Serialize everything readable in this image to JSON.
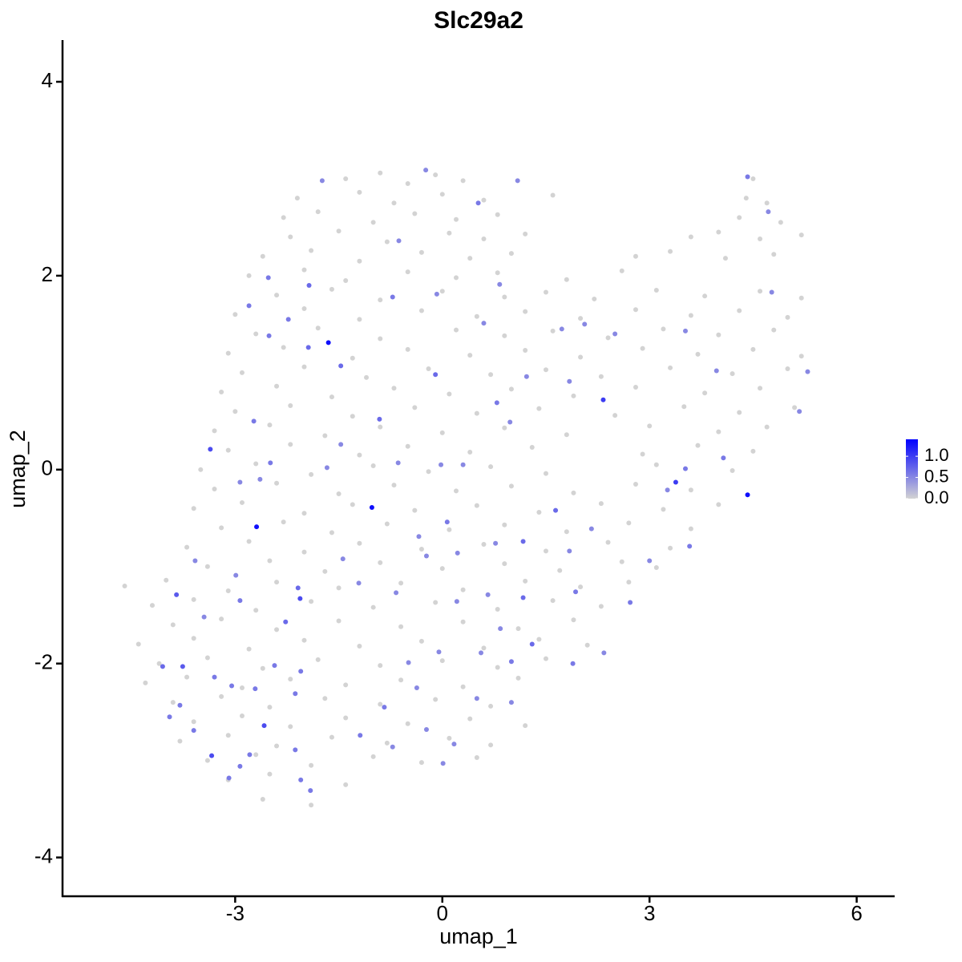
{
  "chart_data": {
    "type": "scatter",
    "title": "Slc29a2",
    "x_label": "umap_1",
    "y_label": "umap_2",
    "xlim": [
      -5.5,
      6.55
    ],
    "ylim": [
      -4.4,
      4.43
    ],
    "xticks": [
      -3,
      0,
      3,
      6
    ],
    "yticks": [
      -4,
      -2,
      0,
      2,
      4
    ],
    "colorbar": {
      "low_color": "#d3d3d3",
      "high_color": "#0000ff",
      "lim": [
        0,
        1.4
      ],
      "ticks": [
        {
          "value": 0,
          "label": "0.0"
        },
        {
          "value": 0.5,
          "label": "0.5"
        },
        {
          "value": 1,
          "label": "1.0"
        }
      ]
    },
    "x": [
      -1.65,
      -1.02,
      -2.69,
      4.42,
      3.38,
      2.33,
      -3.36,
      -2.58,
      -3.34,
      -2.06,
      -3.85,
      -3.76,
      -4.05,
      -1.94,
      -1.93,
      -2.51,
      -1.47,
      -0.72,
      0.52,
      -0.1,
      -0.91,
      1.64,
      1.17,
      1.3,
      1.0,
      1.93,
      3.52,
      3.58,
      2.72,
      4.07,
      3.97,
      5.29,
      5.17,
      4.77,
      4.72,
      4.42,
      3.52,
      2.5,
      2.06,
      1.73,
      0.6,
      -0.08,
      0.83,
      1.09,
      -0.24,
      -1.74,
      -0.63,
      -2.52,
      -2.8,
      -2.23,
      -2.73,
      -2.49,
      -2.93,
      -2.64,
      -1.67,
      -1.47,
      -0.64,
      -0.02,
      0.3,
      0.79,
      1.22,
      1.84,
      0.98,
      0.07,
      -0.34,
      0.22,
      0.77,
      1.17,
      -0.23,
      -0.67,
      -1.21,
      -1.44,
      -2.09,
      -2.27,
      -2.93,
      -2.99,
      -3.58,
      -3.45,
      -3.3,
      -3.05,
      -2.71,
      -2.43,
      -2.13,
      -2.05,
      -3.8,
      -3.95,
      -3.6,
      -3.09,
      -2.93,
      -2.79,
      -2.13,
      -1.91,
      -2.05,
      -1.19,
      -0.84,
      -0.72,
      -0.23,
      0.01,
      0.17,
      0.5,
      1.0,
      0.56,
      0.84,
      -0.05,
      -0.49,
      -0.37,
      0.21,
      0.66,
      1.89,
      2.34,
      1.84,
      2.16,
      3.0,
      3.26,
      -1.4,
      -0.9,
      -0.5,
      -0.1,
      0.3,
      -2.1,
      -1.2,
      -0.7,
      0.0,
      0.6,
      1.6,
      -2.3,
      -1.8,
      -1.0,
      -0.4,
      0.2,
      0.8,
      -2.2,
      -1.5,
      -0.8,
      0.1,
      0.6,
      1.2,
      -2.6,
      -1.9,
      -1.2,
      -0.3,
      0.4,
      1.0,
      -2.8,
      -2.0,
      -1.4,
      -0.5,
      0.2,
      0.8,
      1.8,
      2.6,
      -2.4,
      -1.6,
      -0.9,
      0.0,
      0.9,
      1.5,
      2.2,
      3.1,
      3.8,
      4.6,
      5.2,
      -3.0,
      -2.0,
      -1.2,
      -0.3,
      0.5,
      1.2,
      2.0,
      2.8,
      3.6,
      4.3,
      5.0,
      -2.7,
      -1.8,
      -0.9,
      0.2,
      0.9,
      1.6,
      2.4,
      3.2,
      4.0,
      4.8,
      -3.1,
      -2.3,
      -1.3,
      -0.5,
      0.4,
      1.2,
      2.0,
      2.9,
      3.7,
      4.5,
      5.2,
      -2.9,
      -2.0,
      -1.1,
      -0.2,
      0.7,
      1.5,
      2.3,
      3.3,
      4.2,
      5.0,
      -3.2,
      -2.4,
      -1.6,
      -0.7,
      0.1,
      1.0,
      1.9,
      2.8,
      3.8,
      4.6,
      -3.0,
      -2.2,
      -1.3,
      -0.4,
      0.5,
      1.4,
      2.5,
      3.5,
      4.3,
      5.1,
      -3.3,
      -2.5,
      -1.7,
      -0.9,
      0.0,
      0.9,
      1.8,
      3.0,
      4.0,
      4.7,
      -3.1,
      -2.2,
      -1.2,
      -0.5,
      0.4,
      1.3,
      2.9,
      3.7,
      4.5,
      -3.5,
      -2.7,
      -1.9,
      -1.0,
      -0.2,
      0.7,
      1.5,
      3.1,
      4.2,
      -3.3,
      -2.4,
      -1.5,
      -0.7,
      0.2,
      1.0,
      1.9,
      2.8,
      3.6,
      -3.6,
      -2.9,
      -2.0,
      -1.3,
      -0.4,
      0.5,
      1.4,
      2.3,
      3.2,
      4.0,
      -3.2,
      -2.3,
      -1.6,
      -0.8,
      0.1,
      0.9,
      1.8,
      2.7,
      3.6,
      -3.7,
      -2.8,
      -2.0,
      -1.2,
      -0.3,
      0.6,
      1.5,
      2.4,
      3.3,
      -3.4,
      -2.5,
      -1.7,
      -0.9,
      0.0,
      0.9,
      1.7,
      2.6,
      3.1,
      -4.6,
      -4.0,
      -3.1,
      -2.4,
      -1.5,
      -0.6,
      0.3,
      1.2,
      2.0,
      2.7,
      -4.2,
      -3.6,
      -2.7,
      -1.9,
      -1.0,
      -0.1,
      0.8,
      1.6,
      2.3,
      -3.9,
      -3.2,
      -2.4,
      -1.5,
      -0.6,
      0.3,
      1.1,
      1.9,
      -4.4,
      -3.6,
      -2.8,
      -2.0,
      -1.2,
      -0.3,
      0.6,
      1.4,
      2.1,
      -4.1,
      -3.4,
      -2.6,
      -1.8,
      -0.9,
      0.0,
      0.8,
      1.5,
      -4.3,
      -3.7,
      -2.9,
      -2.2,
      -1.4,
      -0.6,
      0.3,
      1.1,
      -3.9,
      -3.2,
      -2.5,
      -1.7,
      -0.9,
      -0.1,
      0.7,
      -3.6,
      -2.9,
      -2.2,
      -1.4,
      -0.5,
      0.4,
      1.2,
      -3.8,
      -3.1,
      -2.4,
      -1.6,
      -0.8,
      0.1,
      0.7,
      -3.4,
      -2.7,
      -1.9,
      -1.0,
      -0.3,
      0.5,
      -3.1,
      -2.5,
      -1.4,
      -2.6,
      -1.9,
      4.3,
      4.9,
      3.6,
      4.0,
      4.6,
      5.2,
      2.8,
      3.3,
      4.1,
      4.8,
      4.4,
      4.7,
      4.5
    ],
    "y": [
      1.31,
      -0.39,
      -0.59,
      -0.26,
      -0.13,
      0.72,
      0.21,
      -2.64,
      -2.95,
      -1.33,
      -1.29,
      -2.03,
      -2.03,
      1.26,
      1.9,
      1.38,
      1.07,
      1.78,
      2.75,
      0.98,
      0.52,
      -0.42,
      -1.32,
      -1.8,
      -1.98,
      -1.26,
      0.01,
      -0.79,
      -1.37,
      0.12,
      1.02,
      1.01,
      0.6,
      1.83,
      2.66,
      3.02,
      1.43,
      1.4,
      1.5,
      1.45,
      1.51,
      1.81,
      1.91,
      2.98,
      3.09,
      2.98,
      2.36,
      1.98,
      1.69,
      1.55,
      0.5,
      0.07,
      -0.13,
      -0.1,
      0.02,
      0.26,
      0.07,
      0.05,
      0.05,
      0.69,
      0.96,
      0.91,
      0.49,
      -0.54,
      -0.69,
      -0.86,
      -0.76,
      -0.74,
      -0.89,
      -1.27,
      -1.17,
      -0.92,
      -1.22,
      -1.57,
      -1.35,
      -1.09,
      -0.94,
      -1.52,
      -2.14,
      -2.23,
      -2.26,
      -2.02,
      -2.31,
      -2.08,
      -2.43,
      -2.55,
      -2.69,
      -3.18,
      -3.06,
      -2.94,
      -2.89,
      -3.31,
      -3.2,
      -2.74,
      -2.45,
      -2.86,
      -2.68,
      -3.03,
      -2.83,
      -2.36,
      -2.4,
      -1.89,
      -1.64,
      -1.88,
      -1.99,
      -2.25,
      -1.36,
      -1.29,
      -2.0,
      -1.89,
      -0.84,
      -0.61,
      -0.94,
      -0.21,
      3.0,
      3.06,
      2.95,
      3.04,
      2.98,
      2.8,
      2.86,
      2.75,
      2.84,
      2.78,
      2.83,
      2.6,
      2.66,
      2.55,
      2.64,
      2.58,
      2.63,
      2.4,
      2.46,
      2.35,
      2.44,
      2.38,
      2.43,
      2.2,
      2.26,
      2.15,
      2.24,
      2.18,
      2.23,
      2.0,
      2.06,
      1.95,
      2.04,
      1.98,
      2.03,
      1.96,
      2.05,
      1.8,
      1.86,
      1.75,
      1.84,
      1.78,
      1.83,
      1.76,
      1.85,
      1.79,
      1.84,
      1.77,
      1.6,
      1.66,
      1.55,
      1.64,
      1.58,
      1.63,
      1.56,
      1.65,
      1.59,
      1.64,
      1.57,
      1.4,
      1.46,
      1.35,
      1.44,
      1.38,
      1.43,
      1.36,
      1.45,
      1.39,
      1.44,
      1.2,
      1.26,
      1.15,
      1.24,
      1.18,
      1.23,
      1.16,
      1.25,
      1.19,
      1.24,
      1.17,
      1.0,
      1.06,
      0.95,
      1.04,
      0.98,
      1.03,
      0.96,
      1.05,
      0.99,
      1.04,
      0.8,
      0.86,
      0.75,
      0.84,
      0.78,
      0.83,
      0.76,
      0.85,
      0.79,
      0.84,
      0.6,
      0.66,
      0.55,
      0.64,
      0.58,
      0.63,
      0.56,
      0.65,
      0.59,
      0.64,
      0.4,
      0.46,
      0.35,
      0.44,
      0.38,
      0.43,
      0.36,
      0.45,
      0.39,
      0.44,
      0.2,
      0.26,
      0.15,
      0.24,
      0.18,
      0.23,
      0.16,
      0.25,
      0.19,
      0.0,
      0.06,
      -0.05,
      0.04,
      -0.02,
      0.03,
      -0.04,
      0.05,
      -0.01,
      -0.2,
      -0.14,
      -0.25,
      -0.16,
      -0.22,
      -0.17,
      -0.24,
      -0.15,
      -0.21,
      -0.4,
      -0.34,
      -0.45,
      -0.36,
      -0.42,
      -0.37,
      -0.44,
      -0.35,
      -0.41,
      -0.36,
      -0.6,
      -0.54,
      -0.65,
      -0.56,
      -0.62,
      -0.57,
      -0.64,
      -0.55,
      -0.61,
      -0.8,
      -0.74,
      -0.85,
      -0.76,
      -0.82,
      -0.77,
      -0.84,
      -0.75,
      -0.81,
      -1.0,
      -0.94,
      -1.05,
      -0.96,
      -1.02,
      -0.97,
      -1.04,
      -0.95,
      -1.01,
      -1.2,
      -1.14,
      -1.25,
      -1.16,
      -1.22,
      -1.17,
      -1.24,
      -1.15,
      -1.21,
      -1.16,
      -1.4,
      -1.34,
      -1.45,
      -1.36,
      -1.42,
      -1.37,
      -1.44,
      -1.35,
      -1.41,
      -1.6,
      -1.54,
      -1.65,
      -1.56,
      -1.62,
      -1.57,
      -1.64,
      -1.55,
      -1.8,
      -1.74,
      -1.85,
      -1.76,
      -1.82,
      -1.77,
      -1.84,
      -1.75,
      -1.81,
      -2.0,
      -1.94,
      -2.05,
      -1.96,
      -2.02,
      -1.97,
      -2.04,
      -1.95,
      -2.2,
      -2.14,
      -2.25,
      -2.16,
      -2.22,
      -2.17,
      -2.24,
      -2.15,
      -2.4,
      -2.34,
      -2.45,
      -2.36,
      -2.42,
      -2.37,
      -2.44,
      -2.6,
      -2.54,
      -2.65,
      -2.56,
      -2.62,
      -2.57,
      -2.64,
      -2.8,
      -2.74,
      -2.85,
      -2.76,
      -2.82,
      -2.77,
      -2.84,
      -3.0,
      -2.94,
      -3.05,
      -2.96,
      -3.02,
      -2.97,
      -3.2,
      -3.14,
      -3.25,
      -3.4,
      -3.46,
      2.6,
      2.55,
      2.4,
      2.45,
      2.38,
      2.42,
      2.2,
      2.25,
      2.18,
      2.22,
      2.8,
      2.75,
      3.0
    ],
    "values": [
      1.3,
      1.3,
      1.3,
      1.3,
      1.0,
      1.0,
      0.9,
      0.9,
      0.9,
      0.9,
      0.8,
      0.8,
      0.7,
      0.7,
      0.7,
      0.6,
      0.7,
      0.6,
      0.6,
      0.7,
      0.7,
      0.7,
      0.7,
      0.7,
      0.6,
      0.6,
      0.6,
      0.6,
      0.6,
      0.6,
      0.5,
      0.5,
      0.5,
      0.5,
      0.5,
      0.6,
      0.5,
      0.5,
      0.5,
      0.5,
      0.5,
      0.5,
      0.5,
      0.5,
      0.5,
      0.5,
      0.5,
      0.6,
      0.6,
      0.6,
      0.6,
      0.6,
      0.5,
      0.5,
      0.5,
      0.5,
      0.5,
      0.5,
      0.5,
      0.6,
      0.5,
      0.5,
      0.5,
      0.6,
      0.5,
      0.5,
      0.5,
      0.7,
      0.5,
      0.5,
      0.5,
      0.5,
      0.7,
      0.7,
      0.6,
      0.5,
      0.5,
      0.5,
      0.6,
      0.6,
      0.6,
      0.6,
      0.6,
      0.6,
      0.6,
      0.6,
      0.6,
      0.6,
      0.6,
      0.6,
      0.6,
      0.6,
      0.6,
      0.6,
      0.6,
      0.5,
      0.5,
      0.5,
      0.5,
      0.5,
      0.5,
      0.5,
      0.5,
      0.5,
      0.5,
      0.5,
      0.5,
      0.5,
      0.6,
      0.5,
      0.5,
      0.5,
      0.5,
      0.5,
      0,
      0,
      0,
      0,
      0,
      0,
      0,
      0,
      0,
      0,
      0,
      0,
      0,
      0,
      0,
      0,
      0,
      0,
      0,
      0,
      0,
      0,
      0,
      0,
      0,
      0,
      0,
      0,
      0,
      0,
      0,
      0,
      0,
      0,
      0,
      0,
      0,
      0,
      0,
      0,
      0,
      0,
      0,
      0,
      0,
      0,
      0,
      0,
      0,
      0,
      0,
      0,
      0,
      0,
      0,
      0,
      0,
      0,
      0,
      0,
      0,
      0,
      0,
      0,
      0,
      0,
      0,
      0,
      0,
      0,
      0,
      0,
      0,
      0,
      0,
      0,
      0,
      0,
      0,
      0,
      0,
      0,
      0,
      0,
      0,
      0,
      0,
      0,
      0,
      0,
      0,
      0,
      0,
      0,
      0,
      0,
      0,
      0,
      0,
      0,
      0,
      0,
      0,
      0,
      0,
      0,
      0,
      0,
      0,
      0,
      0,
      0,
      0,
      0,
      0,
      0,
      0,
      0,
      0,
      0,
      0,
      0,
      0,
      0,
      0,
      0,
      0,
      0,
      0,
      0,
      0,
      0,
      0,
      0,
      0,
      0,
      0,
      0,
      0,
      0,
      0,
      0,
      0,
      0,
      0,
      0,
      0,
      0,
      0,
      0,
      0,
      0,
      0,
      0,
      0,
      0,
      0,
      0,
      0,
      0,
      0,
      0,
      0,
      0,
      0,
      0,
      0,
      0,
      0,
      0,
      0,
      0,
      0,
      0,
      0,
      0,
      0,
      0,
      0,
      0,
      0,
      0,
      0,
      0,
      0,
      0,
      0,
      0,
      0,
      0,
      0,
      0,
      0,
      0,
      0,
      0,
      0,
      0,
      0,
      0,
      0,
      0,
      0,
      0,
      0,
      0,
      0,
      0,
      0,
      0,
      0,
      0,
      0,
      0,
      0,
      0,
      0,
      0,
      0,
      0,
      0,
      0,
      0,
      0,
      0,
      0,
      0,
      0,
      0,
      0,
      0,
      0,
      0,
      0,
      0,
      0,
      0,
      0,
      0,
      0,
      0,
      0,
      0,
      0,
      0,
      0,
      0,
      0,
      0,
      0,
      0,
      0,
      0,
      0,
      0,
      0,
      0,
      0,
      0,
      0,
      0,
      0,
      0,
      0,
      0,
      0,
      0,
      0,
      0,
      0,
      0,
      0,
      0,
      0,
      0,
      0,
      0,
      0,
      0,
      0,
      0
    ]
  }
}
